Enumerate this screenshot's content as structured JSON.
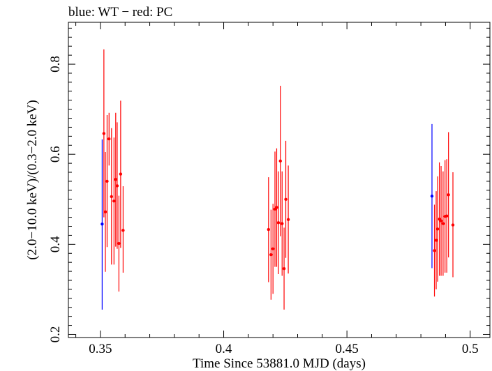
{
  "chart_data": {
    "type": "scatter",
    "title": "blue: WT − red: PC",
    "xlabel": "Time Since 53881.0 MJD (days)",
    "ylabel": "(2.0−10.0 keV)/(0.3−2.0 keV)",
    "xlim": [
      0.337,
      0.508
    ],
    "ylim": [
      0.193,
      0.893
    ],
    "x_ticks": [
      {
        "value": 0.35,
        "label": "0.35"
      },
      {
        "value": 0.4,
        "label": "0.4"
      },
      {
        "value": 0.45,
        "label": "0.45"
      },
      {
        "value": 0.5,
        "label": "0.5"
      }
    ],
    "y_ticks": [
      {
        "value": 0.2,
        "label": "0.2"
      },
      {
        "value": 0.4,
        "label": "0.4"
      },
      {
        "value": 0.6,
        "label": "0.6"
      },
      {
        "value": 0.8,
        "label": "0.8"
      }
    ],
    "grid": false,
    "series": [
      {
        "color": "#0000ff",
        "points": [
          {
            "x": 0.3507,
            "y": 0.445,
            "ylo": 0.255,
            "yhi": 0.633
          },
          {
            "x": 0.4845,
            "y": 0.507,
            "ylo": 0.347,
            "yhi": 0.667
          }
        ]
      },
      {
        "color": "#ff0000",
        "points": [
          {
            "x": 0.3514,
            "y": 0.646,
            "ylo": 0.46,
            "yhi": 0.833
          },
          {
            "x": 0.352,
            "y": 0.472,
            "ylo": 0.339,
            "yhi": 0.605
          },
          {
            "x": 0.3527,
            "y": 0.54,
            "ylo": 0.394,
            "yhi": 0.687
          },
          {
            "x": 0.3535,
            "y": 0.634,
            "ylo": 0.575,
            "yhi": 0.692
          },
          {
            "x": 0.3545,
            "y": 0.506,
            "ylo": 0.355,
            "yhi": 0.658
          },
          {
            "x": 0.3555,
            "y": 0.496,
            "ylo": 0.355,
            "yhi": 0.637
          },
          {
            "x": 0.3562,
            "y": 0.544,
            "ylo": 0.395,
            "yhi": 0.692
          },
          {
            "x": 0.3568,
            "y": 0.53,
            "ylo": 0.39,
            "yhi": 0.671
          },
          {
            "x": 0.3575,
            "y": 0.402,
            "ylo": 0.295,
            "yhi": 0.508
          },
          {
            "x": 0.3582,
            "y": 0.556,
            "ylo": 0.392,
            "yhi": 0.719
          },
          {
            "x": 0.3592,
            "y": 0.431,
            "ylo": 0.337,
            "yhi": 0.529
          },
          {
            "x": 0.4182,
            "y": 0.433,
            "ylo": 0.316,
            "yhi": 0.549
          },
          {
            "x": 0.4192,
            "y": 0.377,
            "ylo": 0.277,
            "yhi": 0.477
          },
          {
            "x": 0.42,
            "y": 0.39,
            "ylo": 0.29,
            "yhi": 0.49
          },
          {
            "x": 0.4208,
            "y": 0.478,
            "ylo": 0.35,
            "yhi": 0.606
          },
          {
            "x": 0.4215,
            "y": 0.482,
            "ylo": 0.35,
            "yhi": 0.613
          },
          {
            "x": 0.4222,
            "y": 0.448,
            "ylo": 0.334,
            "yhi": 0.562
          },
          {
            "x": 0.423,
            "y": 0.585,
            "ylo": 0.418,
            "yhi": 0.752
          },
          {
            "x": 0.4237,
            "y": 0.446,
            "ylo": 0.33,
            "yhi": 0.562
          },
          {
            "x": 0.4245,
            "y": 0.346,
            "ylo": 0.255,
            "yhi": 0.437
          },
          {
            "x": 0.4252,
            "y": 0.5,
            "ylo": 0.37,
            "yhi": 0.63
          },
          {
            "x": 0.4262,
            "y": 0.455,
            "ylo": 0.335,
            "yhi": 0.575
          },
          {
            "x": 0.4855,
            "y": 0.386,
            "ylo": 0.284,
            "yhi": 0.488
          },
          {
            "x": 0.4862,
            "y": 0.409,
            "ylo": 0.3,
            "yhi": 0.518
          },
          {
            "x": 0.4868,
            "y": 0.434,
            "ylo": 0.317,
            "yhi": 0.551
          },
          {
            "x": 0.4875,
            "y": 0.456,
            "ylo": 0.33,
            "yhi": 0.582
          },
          {
            "x": 0.4882,
            "y": 0.452,
            "ylo": 0.33,
            "yhi": 0.574
          },
          {
            "x": 0.489,
            "y": 0.446,
            "ylo": 0.33,
            "yhi": 0.562
          },
          {
            "x": 0.4898,
            "y": 0.462,
            "ylo": 0.337,
            "yhi": 0.587
          },
          {
            "x": 0.4905,
            "y": 0.463,
            "ylo": 0.337,
            "yhi": 0.589
          },
          {
            "x": 0.4912,
            "y": 0.51,
            "ylo": 0.371,
            "yhi": 0.649
          },
          {
            "x": 0.493,
            "y": 0.443,
            "ylo": 0.327,
            "yhi": 0.56
          }
        ]
      }
    ]
  }
}
